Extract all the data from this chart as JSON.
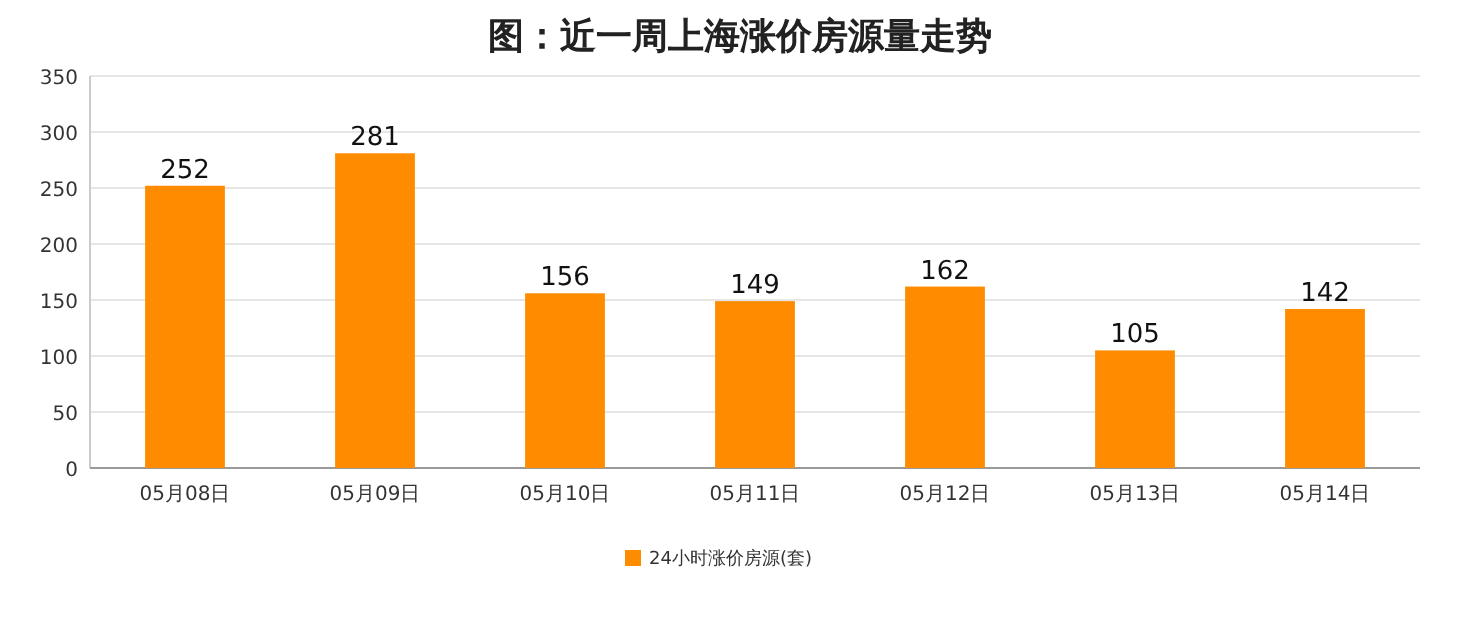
{
  "chart_data": {
    "type": "bar",
    "title": "图：近一周上海涨价房源量走势",
    "categories": [
      "05月08日",
      "05月09日",
      "05月10日",
      "05月11日",
      "05月12日",
      "05月13日",
      "05月14日"
    ],
    "series": [
      {
        "name": "24小时涨价房源(套)",
        "color": "#ff8c00",
        "values": [
          252,
          281,
          156,
          149,
          162,
          105,
          142
        ]
      }
    ],
    "ylim": [
      0,
      350
    ],
    "yticks": [
      0,
      50,
      100,
      150,
      200,
      250,
      300,
      350
    ],
    "grid": "y",
    "legend": "bottom",
    "data_labels": true
  }
}
